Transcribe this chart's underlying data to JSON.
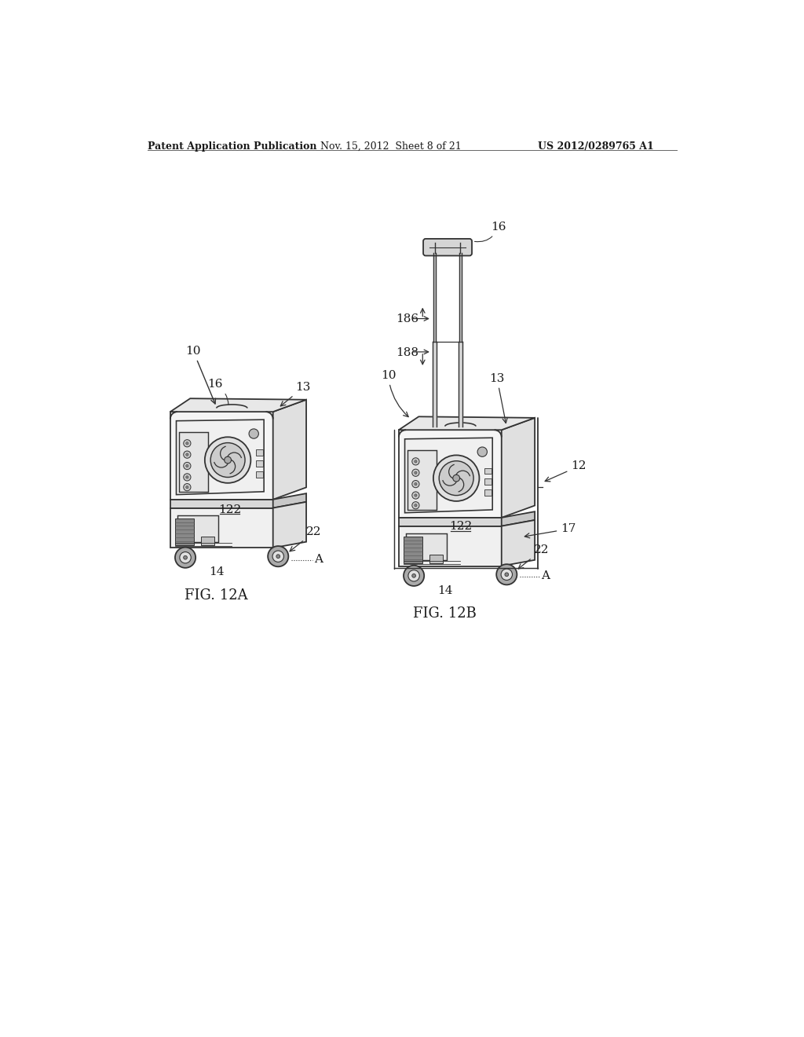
{
  "bg_color": "#ffffff",
  "header_left": "Patent Application Publication",
  "header_center": "Nov. 15, 2012  Sheet 8 of 21",
  "header_right": "US 2012/0289765 A1",
  "fig_label_left": "FIG. 12A",
  "fig_label_right": "FIG. 12B",
  "text_color": "#1a1a1a",
  "line_color": "#333333",
  "line_color_light": "#666666",
  "figsize": [
    10.24,
    13.2
  ],
  "dpi": 100,
  "header_fontsize": 9,
  "label_fontsize": 11,
  "figcap_fontsize": 13,
  "ref_fontsize": 11
}
